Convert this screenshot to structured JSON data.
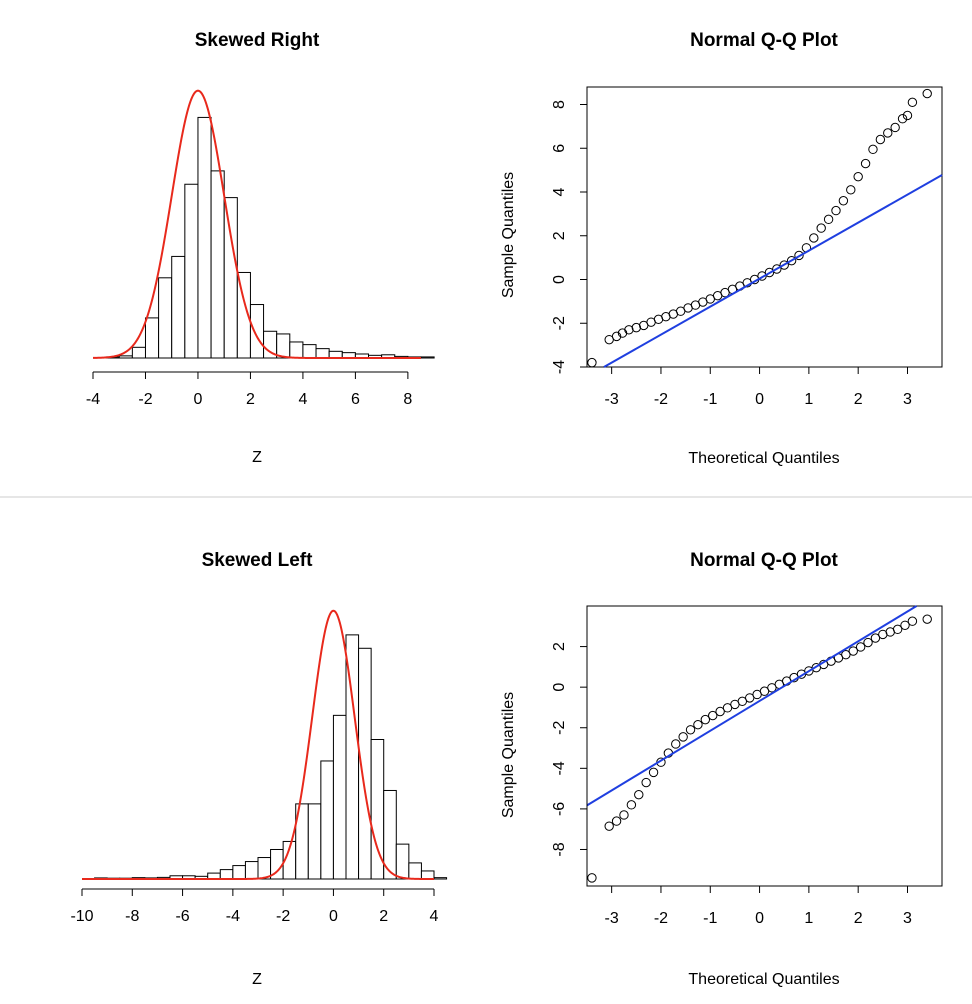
{
  "colors": {
    "density": "#e8291c",
    "qqline": "#1f3fe0",
    "points": "#000000",
    "bars": "#ffffff",
    "separator": "#cccccc"
  },
  "chart_data": [
    {
      "id": "hist-right",
      "type": "bar",
      "title": "Skewed Right",
      "xlabel": "Z",
      "ylabel": "",
      "xlim": [
        -4,
        8.5
      ],
      "xticks": [
        -4,
        -2,
        0,
        2,
        4,
        6,
        8
      ],
      "bin_width": 0.5,
      "bins_start": -3.5,
      "values": [
        0.004,
        0.008,
        0.04,
        0.15,
        0.3,
        0.38,
        0.65,
        0.9,
        0.7,
        0.6,
        0.32,
        0.2,
        0.1,
        0.09,
        0.06,
        0.05,
        0.035,
        0.025,
        0.02,
        0.015,
        0.01,
        0.012,
        0.006,
        0.004,
        0.004
      ],
      "curve": {
        "type": "normal-density",
        "mean": 0,
        "sd": 1,
        "peak_value": 1.0
      },
      "y_max_scale": 1.04
    },
    {
      "id": "qq-right",
      "type": "scatter",
      "title": "Normal Q-Q Plot",
      "xlabel": "Theoretical Quantiles",
      "ylabel": "Sample Quantiles",
      "xlim": [
        -3.5,
        3.7
      ],
      "ylim": [
        -4,
        8.8
      ],
      "xticks": [
        -3,
        -2,
        -1,
        0,
        1,
        2,
        3
      ],
      "yticks": [
        -4,
        -2,
        0,
        2,
        4,
        6,
        8
      ],
      "points": [
        [
          -3.4,
          -3.8
        ],
        [
          -3.05,
          -2.75
        ],
        [
          -2.9,
          -2.6
        ],
        [
          -2.78,
          -2.45
        ],
        [
          -2.65,
          -2.3
        ],
        [
          -2.5,
          -2.2
        ],
        [
          -2.35,
          -2.1
        ],
        [
          -2.2,
          -1.95
        ],
        [
          -2.05,
          -1.82
        ],
        [
          -1.9,
          -1.7
        ],
        [
          -1.75,
          -1.58
        ],
        [
          -1.6,
          -1.45
        ],
        [
          -1.45,
          -1.3
        ],
        [
          -1.3,
          -1.17
        ],
        [
          -1.15,
          -1.03
        ],
        [
          -1.0,
          -0.89
        ],
        [
          -0.85,
          -0.74
        ],
        [
          -0.7,
          -0.6
        ],
        [
          -0.55,
          -0.45
        ],
        [
          -0.4,
          -0.3
        ],
        [
          -0.25,
          -0.15
        ],
        [
          -0.1,
          0.0
        ],
        [
          0.05,
          0.16
        ],
        [
          0.2,
          0.32
        ],
        [
          0.35,
          0.48
        ],
        [
          0.5,
          0.66
        ],
        [
          0.65,
          0.86
        ],
        [
          0.8,
          1.1
        ],
        [
          0.95,
          1.45
        ],
        [
          1.1,
          1.9
        ],
        [
          1.25,
          2.35
        ],
        [
          1.4,
          2.75
        ],
        [
          1.55,
          3.15
        ],
        [
          1.7,
          3.6
        ],
        [
          1.85,
          4.1
        ],
        [
          2.0,
          4.7
        ],
        [
          2.15,
          5.3
        ],
        [
          2.3,
          5.95
        ],
        [
          2.45,
          6.4
        ],
        [
          2.6,
          6.7
        ],
        [
          2.75,
          6.95
        ],
        [
          2.9,
          7.35
        ],
        [
          3.0,
          7.5
        ],
        [
          3.1,
          8.1
        ],
        [
          3.4,
          8.5
        ]
      ],
      "line": {
        "intercept": 0.04,
        "slope": 1.28
      }
    },
    {
      "id": "hist-left",
      "type": "bar",
      "title": "Skewed Left",
      "xlabel": "Z",
      "ylabel": "",
      "xlim": [
        -10,
        4
      ],
      "xticks": [
        -10,
        -8,
        -6,
        -4,
        -2,
        0,
        2,
        4
      ],
      "bin_width": 0.5,
      "bins_start": -9.5,
      "values": [
        0.004,
        0.003,
        0.003,
        0.005,
        0.004,
        0.006,
        0.012,
        0.012,
        0.01,
        0.022,
        0.035,
        0.05,
        0.065,
        0.08,
        0.11,
        0.14,
        0.28,
        0.28,
        0.44,
        0.61,
        0.91,
        0.86,
        0.52,
        0.33,
        0.13,
        0.06,
        0.03,
        0.005
      ],
      "curve": {
        "type": "normal-density",
        "mean": 0,
        "sd": 0.84,
        "peak_value": 1.0
      },
      "y_max_scale": 1.04
    },
    {
      "id": "qq-left",
      "type": "scatter",
      "title": "Normal Q-Q Plot",
      "xlabel": "Theoretical Quantiles",
      "ylabel": "Sample Quantiles",
      "xlim": [
        -3.5,
        3.7
      ],
      "ylim": [
        -9.8,
        4.0
      ],
      "xticks": [
        -3,
        -2,
        -1,
        0,
        1,
        2,
        3
      ],
      "yticks": [
        -8,
        -6,
        -4,
        -2,
        0,
        2
      ],
      "points": [
        [
          -3.4,
          -9.4
        ],
        [
          -3.05,
          -6.85
        ],
        [
          -2.9,
          -6.6
        ],
        [
          -2.75,
          -6.3
        ],
        [
          -2.6,
          -5.8
        ],
        [
          -2.45,
          -5.3
        ],
        [
          -2.3,
          -4.7
        ],
        [
          -2.15,
          -4.2
        ],
        [
          -2.0,
          -3.7
        ],
        [
          -1.85,
          -3.25
        ],
        [
          -1.7,
          -2.8
        ],
        [
          -1.55,
          -2.45
        ],
        [
          -1.4,
          -2.1
        ],
        [
          -1.25,
          -1.85
        ],
        [
          -1.1,
          -1.6
        ],
        [
          -0.95,
          -1.4
        ],
        [
          -0.8,
          -1.2
        ],
        [
          -0.65,
          -1.02
        ],
        [
          -0.5,
          -0.85
        ],
        [
          -0.35,
          -0.7
        ],
        [
          -0.2,
          -0.53
        ],
        [
          -0.05,
          -0.36
        ],
        [
          0.1,
          -0.2
        ],
        [
          0.25,
          -0.03
        ],
        [
          0.4,
          0.14
        ],
        [
          0.55,
          0.3
        ],
        [
          0.7,
          0.47
        ],
        [
          0.85,
          0.64
        ],
        [
          1.0,
          0.8
        ],
        [
          1.15,
          0.96
        ],
        [
          1.3,
          1.12
        ],
        [
          1.45,
          1.28
        ],
        [
          1.6,
          1.44
        ],
        [
          1.75,
          1.6
        ],
        [
          1.9,
          1.78
        ],
        [
          2.05,
          1.98
        ],
        [
          2.2,
          2.2
        ],
        [
          2.35,
          2.42
        ],
        [
          2.5,
          2.6
        ],
        [
          2.65,
          2.72
        ],
        [
          2.8,
          2.85
        ],
        [
          2.95,
          3.05
        ],
        [
          3.1,
          3.25
        ],
        [
          3.4,
          3.35
        ]
      ],
      "line": {
        "intercept": -0.68,
        "slope": 1.47
      }
    }
  ]
}
